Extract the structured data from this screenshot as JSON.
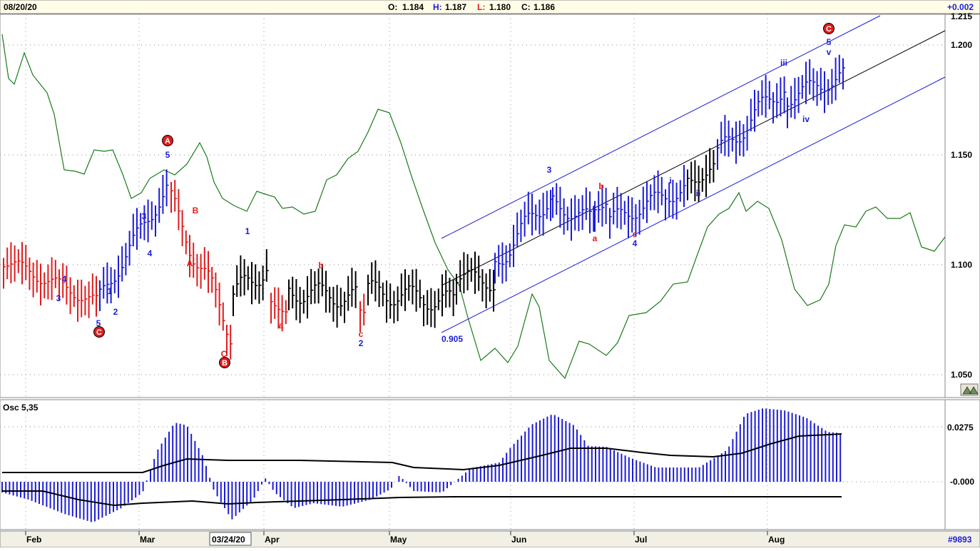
{
  "header": {
    "date": "08/20/20",
    "open_label": "O:",
    "open_value": "1.184",
    "high_label": "H:",
    "high_value": "1.187",
    "low_label": "L:",
    "low_value": "1.180",
    "close_label": "C:",
    "close_value": "1.186",
    "change": "+0.002"
  },
  "footer": {
    "months": [
      "Feb",
      "Mar",
      "Apr",
      "May",
      "Jun",
      "Jul",
      "Aug"
    ],
    "cursor_date": "03/24/20",
    "symbol_id": "#9893"
  },
  "colors": {
    "up_bar": "#1c1cd6",
    "down_bar": "#e01b1b",
    "neutral_bar": "#000000",
    "wave_blue": "#1c1cd6",
    "wave_red": "#e01b1b",
    "indicator_line": "#1a7a1a",
    "channel": "#1c1cd6",
    "osc_bars": "#1c1cd6"
  },
  "chart_data": [
    {
      "type": "bar",
      "title": "",
      "price_axis": {
        "ylim": [
          1.045,
          1.215
        ],
        "ticks": [
          "1.050",
          "1.100",
          "1.150",
          "1.200",
          "1.215"
        ]
      },
      "x_months": [
        "Feb",
        "Mar",
        "Apr",
        "May",
        "Jun",
        "Jul",
        "Aug"
      ],
      "ohlc_bars": [],
      "channel_label": "0.905",
      "wave_labels": [
        {
          "text": "4",
          "color": "blue"
        },
        {
          "text": "3",
          "color": "blue"
        },
        {
          "text": "5",
          "color": "blue"
        },
        {
          "text": "C",
          "color": "red",
          "circled": true
        },
        {
          "text": "1",
          "color": "blue"
        },
        {
          "text": "2",
          "color": "blue"
        },
        {
          "text": "3",
          "color": "blue"
        },
        {
          "text": "4",
          "color": "blue"
        },
        {
          "text": "5",
          "color": "blue"
        },
        {
          "text": "A",
          "color": "red",
          "circled": true
        },
        {
          "text": "B",
          "color": "red"
        },
        {
          "text": "A",
          "color": "red"
        },
        {
          "text": "C",
          "color": "red"
        },
        {
          "text": "B",
          "color": "red",
          "circled": true
        },
        {
          "text": "1",
          "color": "blue"
        },
        {
          "text": "a",
          "color": "red"
        },
        {
          "text": "b",
          "color": "red"
        },
        {
          "text": "c",
          "color": "red"
        },
        {
          "text": "2",
          "color": "blue"
        },
        {
          "text": "3",
          "color": "blue"
        },
        {
          "text": "b",
          "color": "red"
        },
        {
          "text": "a",
          "color": "red"
        },
        {
          "text": "c",
          "color": "red"
        },
        {
          "text": "4",
          "color": "blue"
        },
        {
          "text": "i",
          "color": "blue"
        },
        {
          "text": "ii",
          "color": "blue"
        },
        {
          "text": "iii",
          "color": "blue"
        },
        {
          "text": "iv",
          "color": "blue"
        },
        {
          "text": "5",
          "color": "blue"
        },
        {
          "text": "v",
          "color": "blue"
        },
        {
          "text": "C",
          "color": "red",
          "circled": true
        }
      ],
      "indicator_series": {
        "color": "#1a7a1a"
      }
    },
    {
      "type": "bar",
      "title": "Osc 5,35",
      "osc_axis": {
        "ticks": [
          "0.0275",
          "-0.000"
        ]
      },
      "values": []
    }
  ]
}
